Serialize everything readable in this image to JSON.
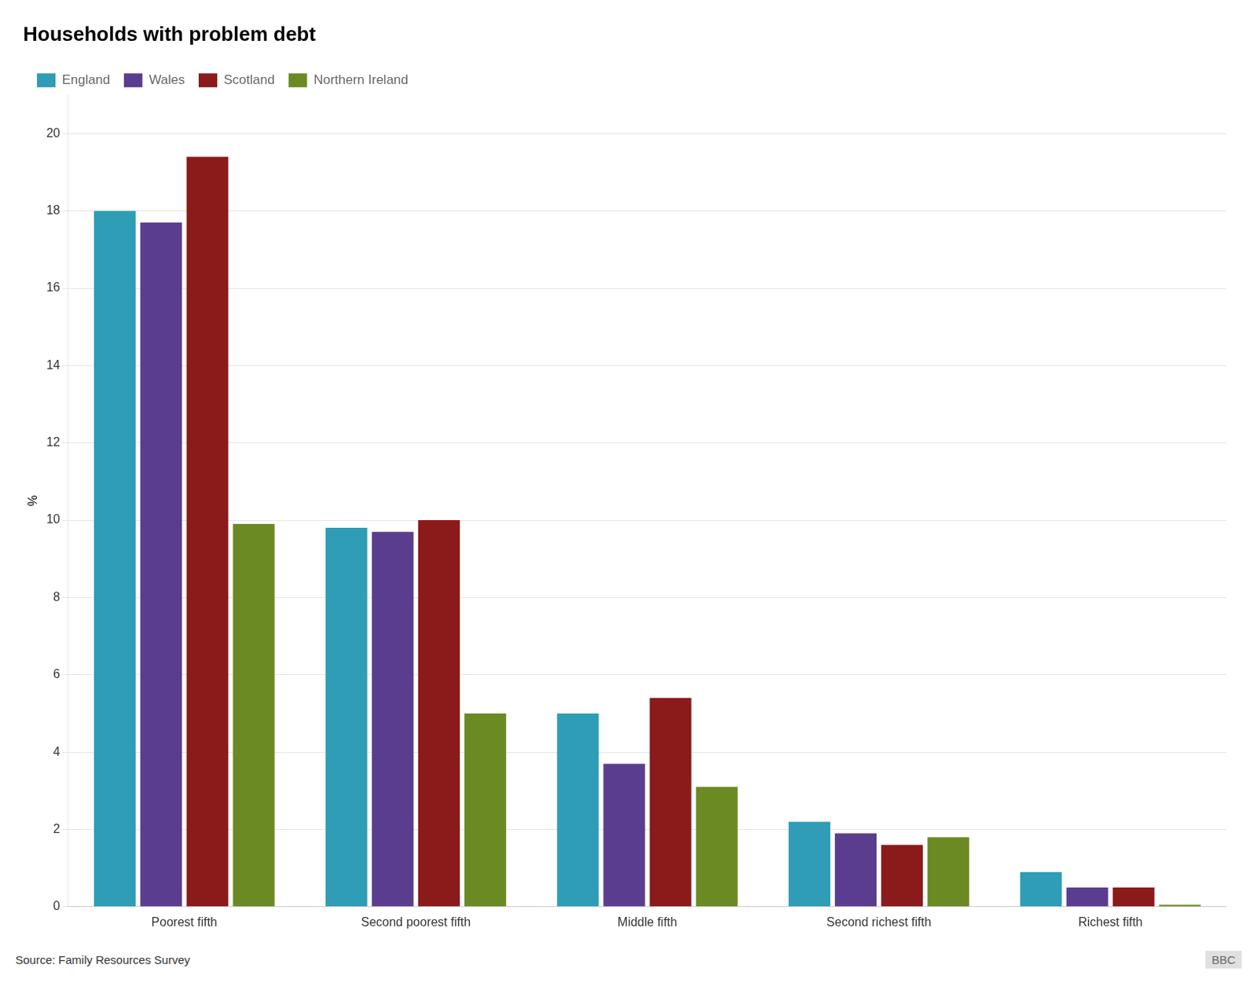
{
  "chart_data": {
    "type": "bar",
    "title": "Households with problem debt",
    "ylabel": "%",
    "annotations": [
      "Source: Family Resources Survey",
      "BBC"
    ],
    "categories": [
      "Poorest fifth",
      "Second poorest fifth",
      "Middle fifth",
      "Second richest fifth",
      "Richest fifth"
    ],
    "series": [
      {
        "name": "England",
        "color": "#2e9db5",
        "values": [
          18.0,
          9.8,
          5.0,
          2.2,
          0.9
        ]
      },
      {
        "name": "Wales",
        "color": "#5b3d8f",
        "values": [
          17.7,
          9.7,
          3.7,
          1.9,
          0.5
        ]
      },
      {
        "name": "Scotland",
        "color": "#8b1a1a",
        "values": [
          19.4,
          10.0,
          5.4,
          1.6,
          0.5
        ]
      },
      {
        "name": "Northern Ireland",
        "color": "#6b8a23",
        "values": [
          9.9,
          5.0,
          3.1,
          1.8,
          0.05
        ]
      }
    ],
    "ylim": [
      0,
      21
    ],
    "yticks": [
      0,
      2,
      4,
      6,
      8,
      10,
      12,
      14,
      16,
      18,
      20
    ],
    "grid": true,
    "legend": "upper left"
  }
}
